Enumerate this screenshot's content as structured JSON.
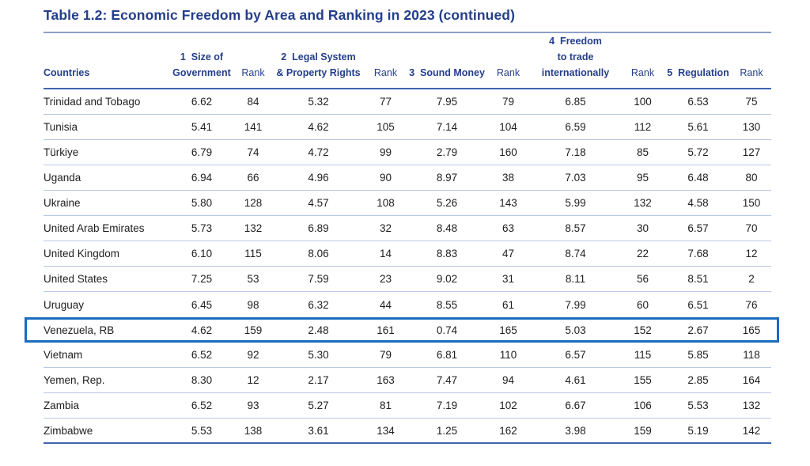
{
  "page": {
    "title": "Table 1.2: Economic Freedom by Area and Ranking in 2023  (continued)"
  },
  "colors": {
    "title_text": "#243e8b",
    "body_text": "#1e1e1e",
    "rule_top": "#8fa0c6",
    "rule_strong": "#3f65ae",
    "rule_light": "#b9c6e2",
    "highlight": "#1b6cc0"
  },
  "table": {
    "headers": [
      {
        "label": "Countries"
      },
      {
        "label": "1  Size of\nGovernment"
      },
      {
        "label": "Rank"
      },
      {
        "label": "2  Legal System\n& Property Rights"
      },
      {
        "label": "Rank"
      },
      {
        "label": "3  Sound Money"
      },
      {
        "label": "Rank"
      },
      {
        "label": "4  Freedom\nto trade\ninternationally"
      },
      {
        "label": "Rank"
      },
      {
        "label": "5  Regulation"
      },
      {
        "label": "Rank"
      }
    ],
    "rows": [
      {
        "country": "Trinidad and Tobago",
        "values": [
          "6.62",
          "84",
          "5.32",
          "77",
          "7.95",
          "79",
          "6.85",
          "100",
          "6.53",
          "75"
        ],
        "highlighted": false
      },
      {
        "country": "Tunisia",
        "values": [
          "5.41",
          "141",
          "4.62",
          "105",
          "7.14",
          "104",
          "6.59",
          "112",
          "5.61",
          "130"
        ],
        "highlighted": false
      },
      {
        "country": "Türkiye",
        "values": [
          "6.79",
          "74",
          "4.72",
          "99",
          "2.79",
          "160",
          "7.18",
          "85",
          "5.72",
          "127"
        ],
        "highlighted": false
      },
      {
        "country": "Uganda",
        "values": [
          "6.94",
          "66",
          "4.96",
          "90",
          "8.97",
          "38",
          "7.03",
          "95",
          "6.48",
          "80"
        ],
        "highlighted": false
      },
      {
        "country": "Ukraine",
        "values": [
          "5.80",
          "128",
          "4.57",
          "108",
          "5.26",
          "143",
          "5.99",
          "132",
          "4.58",
          "150"
        ],
        "highlighted": false
      },
      {
        "country": "United Arab Emirates",
        "values": [
          "5.73",
          "132",
          "6.89",
          "32",
          "8.48",
          "63",
          "8.57",
          "30",
          "6.57",
          "70"
        ],
        "highlighted": false
      },
      {
        "country": "United Kingdom",
        "values": [
          "6.10",
          "115",
          "8.06",
          "14",
          "8.83",
          "47",
          "8.74",
          "22",
          "7.68",
          "12"
        ],
        "highlighted": false
      },
      {
        "country": "United States",
        "values": [
          "7.25",
          "53",
          "7.59",
          "23",
          "9.02",
          "31",
          "8.11",
          "56",
          "8.51",
          "2"
        ],
        "highlighted": false
      },
      {
        "country": "Uruguay",
        "values": [
          "6.45",
          "98",
          "6.32",
          "44",
          "8.55",
          "61",
          "7.99",
          "60",
          "6.51",
          "76"
        ],
        "highlighted": false
      },
      {
        "country": "Venezuela, RB",
        "values": [
          "4.62",
          "159",
          "2.48",
          "161",
          "0.74",
          "165",
          "5.03",
          "152",
          "2.67",
          "165"
        ],
        "highlighted": true
      },
      {
        "country": "Vietnam",
        "values": [
          "6.52",
          "92",
          "5.30",
          "79",
          "6.81",
          "110",
          "6.57",
          "115",
          "5.85",
          "118"
        ],
        "highlighted": false
      },
      {
        "country": "Yemen, Rep.",
        "values": [
          "8.30",
          "12",
          "2.17",
          "163",
          "7.47",
          "94",
          "4.61",
          "155",
          "2.85",
          "164"
        ],
        "highlighted": false
      },
      {
        "country": "Zambia",
        "values": [
          "6.52",
          "93",
          "5.27",
          "81",
          "7.19",
          "102",
          "6.67",
          "106",
          "5.53",
          "132"
        ],
        "highlighted": false
      },
      {
        "country": "Zimbabwe",
        "values": [
          "5.53",
          "138",
          "3.61",
          "134",
          "1.25",
          "162",
          "3.98",
          "159",
          "5.19",
          "142"
        ],
        "highlighted": false
      }
    ]
  }
}
